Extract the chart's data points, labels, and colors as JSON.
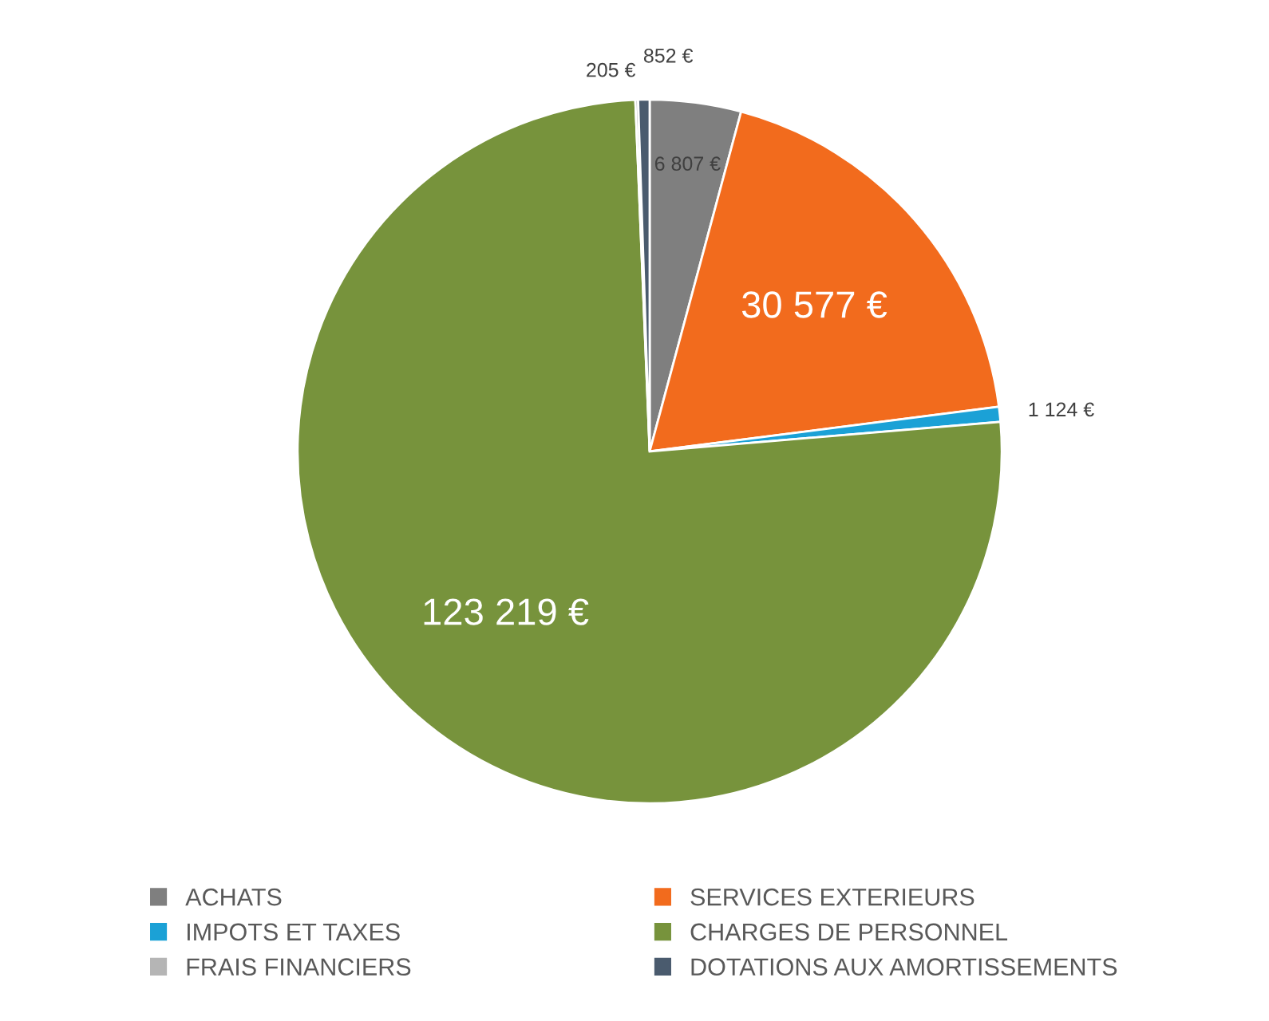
{
  "chart_data": {
    "type": "pie",
    "categories": [
      "ACHATS",
      "SERVICES EXTERIEURS",
      "IMPOTS ET TAXES",
      "CHARGES DE PERSONNEL",
      "FRAIS FINANCIERS",
      "DOTATIONS AUX AMORTISSEMENTS"
    ],
    "values": [
      6807,
      30577,
      1124,
      123219,
      205,
      852
    ],
    "value_labels": [
      "6 807 €",
      "30 577 €",
      "1 124 €",
      "123 219 €",
      "205 €",
      "852 €"
    ],
    "colors": [
      "#7f7f7f",
      "#f26b1d",
      "#1ba1d6",
      "#77933c",
      "#b5b5b5",
      "#4a5b6e"
    ],
    "legend": "bottom"
  }
}
